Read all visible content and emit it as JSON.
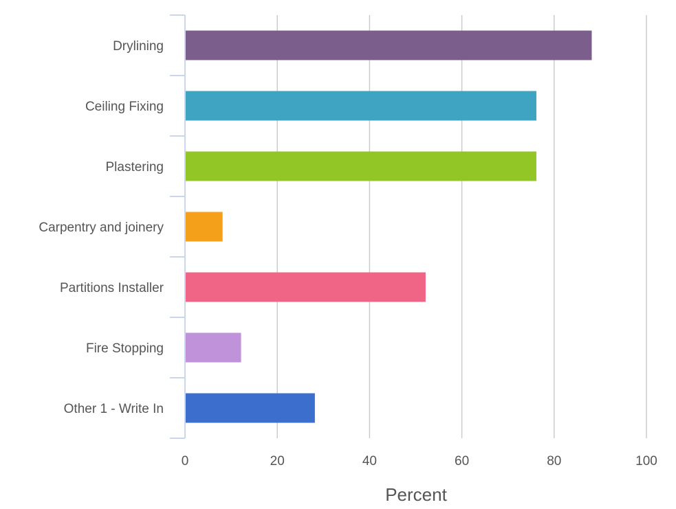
{
  "chart_data": {
    "type": "bar",
    "orientation": "horizontal",
    "categories": [
      "Drylining",
      "Ceiling Fixing",
      "Plastering",
      "Carpentry and joinery",
      "Partitions Installer",
      "Fire Stopping",
      "Other 1 - Write In"
    ],
    "values": [
      88,
      76,
      76,
      8,
      52,
      12,
      28
    ],
    "colors": [
      "#7b5e8c",
      "#3fa3c2",
      "#92c626",
      "#f5a01a",
      "#f06585",
      "#c092da",
      "#3c6fcd"
    ],
    "xlabel": "Percent",
    "xlim": [
      0,
      100
    ],
    "xticks": [
      "0",
      "20",
      "40",
      "60",
      "80",
      "100"
    ],
    "grid": true,
    "legend": "none"
  }
}
